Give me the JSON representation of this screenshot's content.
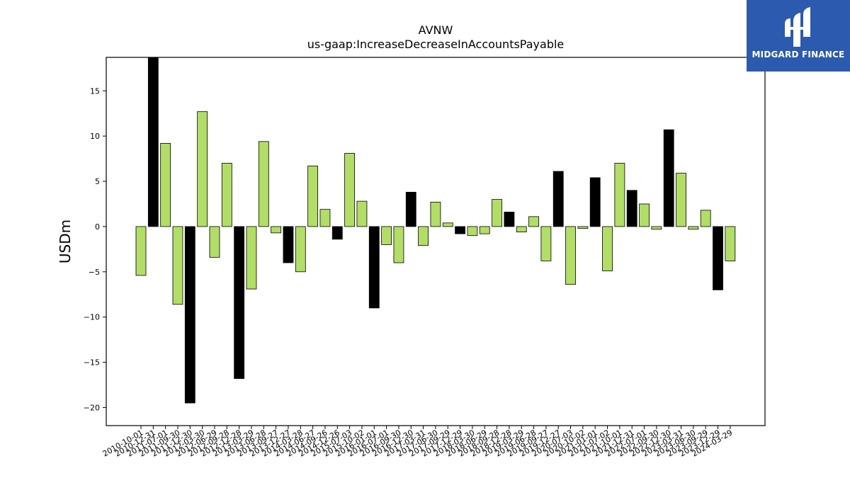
{
  "chart_data": {
    "type": "bar",
    "title": "AVNW",
    "subtitle": "us-gaap:IncreaseDecreaseInAccountsPayable",
    "ylabel": "USDm",
    "ylim": [
      -22,
      18.7
    ],
    "yticks": [
      -20,
      -15,
      -10,
      -5,
      0,
      5,
      10,
      15
    ],
    "grid": false,
    "categories": [
      "2010-10-01",
      "2010-12-31",
      "2011-07-01",
      "2011-09-30",
      "2011-12-30",
      "2012-03-30",
      "2012-06-29",
      "2012-09-28",
      "2012-12-28",
      "2013-03-29",
      "2013-06-28",
      "2013-09-27",
      "2013-12-27",
      "2014-03-28",
      "2014-06-27",
      "2014-09-26",
      "2014-12-26",
      "2015-07-03",
      "2015-10-02",
      "2016-01-01",
      "2016-07-01",
      "2016-09-30",
      "2016-12-30",
      "2017-03-31",
      "2017-06-30",
      "2017-09-29",
      "2017-12-29",
      "2018-03-30",
      "2018-06-29",
      "2018-09-28",
      "2018-12-28",
      "2019-03-29",
      "2019-06-28",
      "2019-09-27",
      "2019-12-27",
      "2020-07-03",
      "2020-10-02",
      "2021-01-01",
      "2021-07-02",
      "2021-10-01",
      "2021-12-31",
      "2022-07-01",
      "2022-09-30",
      "2022-12-30",
      "2023-03-31",
      "2023-06-30",
      "2023-09-29",
      "2023-12-29",
      "2024-03-29"
    ],
    "values": [
      -5.4,
      18.7,
      9.2,
      -8.6,
      -19.5,
      12.7,
      -3.4,
      7.0,
      -16.8,
      -6.9,
      9.4,
      -0.7,
      -4.0,
      -5.0,
      6.7,
      1.9,
      -1.4,
      8.1,
      2.8,
      -9.0,
      -2.0,
      -4.0,
      3.8,
      -2.1,
      2.7,
      0.4,
      -0.8,
      -1.0,
      -0.8,
      3.0,
      1.6,
      -0.6,
      1.1,
      -3.8,
      6.1,
      -6.4,
      -0.2,
      5.4,
      -4.9,
      7.0,
      4.0,
      2.5,
      -0.3,
      10.7,
      5.9,
      -0.3,
      1.8,
      -7.0,
      -3.8
    ],
    "colors": [
      "g",
      "k",
      "g",
      "g",
      "k",
      "g",
      "g",
      "g",
      "k",
      "g",
      "g",
      "g",
      "k",
      "g",
      "g",
      "g",
      "k",
      "g",
      "g",
      "k",
      "g",
      "g",
      "k",
      "g",
      "g",
      "g",
      "k",
      "g",
      "g",
      "g",
      "k",
      "g",
      "g",
      "g",
      "k",
      "g",
      "g",
      "k",
      "g",
      "g",
      "k",
      "g",
      "g",
      "k",
      "g",
      "g",
      "g",
      "k",
      "g"
    ],
    "palette": {
      "g": "#b2dd67",
      "k": "#000000"
    }
  },
  "logo": {
    "text": "MIDGARD FINANCE",
    "background": "#2b5aae"
  }
}
